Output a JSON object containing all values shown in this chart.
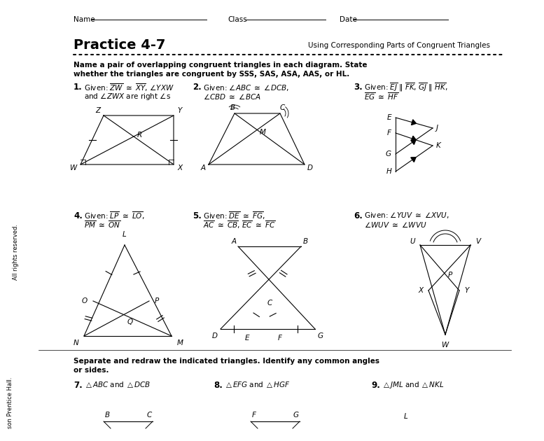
{
  "background_color": "#ffffff",
  "text_color": "#000000",
  "title": "Practice 4-7",
  "subtitle": "Using Corresponding Parts of Congruent Triangles",
  "header_name": "Name",
  "header_class": "Class",
  "header_date": "Date",
  "instruction_line1": "Name a pair of overlapping congruent triangles in each diagram. State",
  "instruction_line2": "whether the triangles are congruent by SSS, SAS, ASA, AAS, or HL.",
  "bottom_instruction_line1": "Separate and redraw the indicated triangles. Identify any common angles",
  "bottom_instruction_line2": "or sides.",
  "sidebar1": "All rights reserved.",
  "sidebar2": "son Prentice Hall."
}
